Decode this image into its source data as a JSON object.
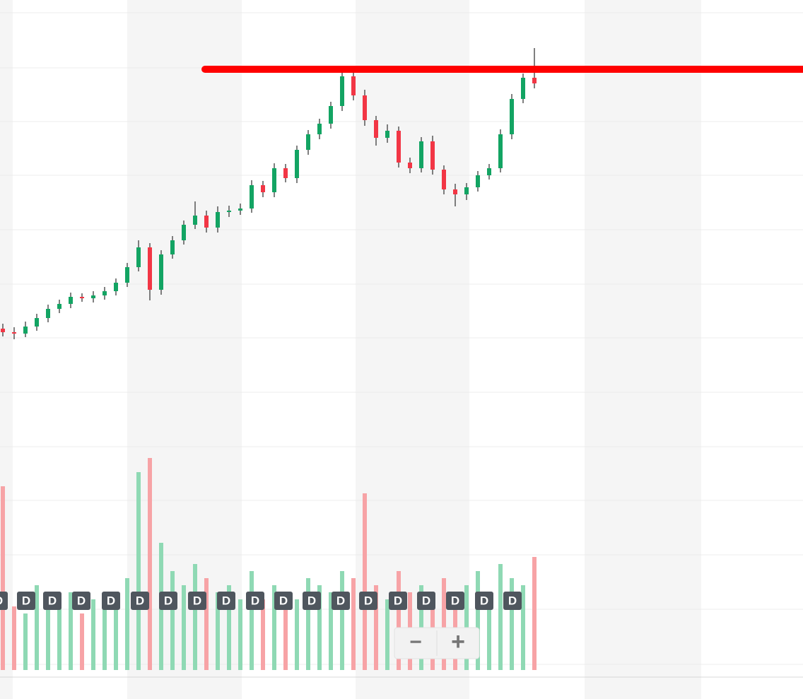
{
  "chart_data": {
    "type": "candlestick",
    "up_color": "#13a463",
    "down_color": "#f23645",
    "volume_up_color": "#8fd9b4",
    "volume_down_color": "#f7a3a6",
    "ylim": [
      0,
      95
    ],
    "volume_lim": [
      0,
      95
    ],
    "open": [
      48.5,
      48.0,
      47.8,
      48.8,
      50.0,
      51.3,
      52.0,
      53.0,
      52.8,
      53.2,
      53.8,
      55.0,
      57.2,
      60.0,
      54.0,
      59.0,
      61.0,
      63.2,
      64.5,
      62.8,
      65.0,
      65.2,
      65.5,
      68.8,
      67.8,
      71.2,
      69.8,
      73.8,
      76.0,
      77.5,
      80.0,
      84.2,
      81.5,
      78.0,
      75.5,
      76.5,
      72.0,
      71.2,
      75.0,
      71.0,
      68.2,
      67.5,
      68.5,
      70.2,
      71.2,
      76.0,
      81.0,
      84.0
    ],
    "high": [
      49.2,
      48.7,
      49.5,
      50.6,
      51.9,
      52.6,
      53.6,
      53.5,
      53.8,
      54.4,
      55.6,
      57.8,
      61.0,
      60.6,
      59.6,
      61.6,
      63.8,
      66.5,
      65.2,
      65.8,
      65.9,
      66.2,
      69.5,
      69.4,
      71.9,
      71.8,
      74.4,
      76.6,
      78.2,
      80.6,
      85.0,
      85.1,
      82.3,
      78.6,
      77.4,
      77.1,
      72.7,
      75.6,
      75.8,
      71.6,
      69.0,
      69.1,
      70.8,
      71.8,
      76.7,
      81.7,
      84.6,
      88.2
    ],
    "low": [
      47.4,
      47.0,
      47.3,
      48.2,
      49.4,
      50.7,
      51.4,
      52.3,
      52.2,
      52.6,
      53.2,
      54.4,
      56.6,
      52.5,
      53.3,
      58.4,
      60.4,
      62.6,
      62.1,
      62.1,
      64.3,
      64.6,
      64.9,
      67.1,
      67.1,
      69.2,
      69.1,
      73.1,
      75.3,
      76.8,
      79.3,
      80.8,
      77.2,
      74.4,
      74.8,
      71.3,
      70.5,
      70.6,
      70.3,
      67.5,
      65.8,
      66.7,
      67.9,
      69.6,
      70.6,
      75.3,
      80.4,
      82.5
    ],
    "close": [
      48.0,
      47.8,
      48.8,
      50.0,
      51.3,
      52.0,
      53.0,
      52.8,
      53.2,
      53.8,
      55.0,
      57.2,
      60.0,
      54.0,
      59.0,
      61.0,
      63.2,
      64.5,
      62.8,
      65.0,
      65.2,
      65.5,
      68.8,
      67.8,
      71.2,
      69.8,
      73.8,
      76.0,
      77.5,
      80.0,
      84.2,
      81.5,
      78.0,
      75.5,
      76.5,
      72.0,
      71.2,
      75.0,
      71.0,
      68.2,
      67.5,
      68.5,
      70.2,
      71.2,
      76.0,
      81.0,
      84.0,
      83.2
    ],
    "volume": [
      26,
      9,
      8,
      12,
      10,
      9,
      11,
      8,
      10,
      9,
      11,
      13,
      28,
      30,
      18,
      14,
      12,
      15,
      13,
      11,
      12,
      10,
      14,
      10,
      12,
      11,
      10,
      13,
      12,
      11,
      14,
      13,
      25,
      12,
      10,
      14,
      11,
      12,
      10,
      13,
      11,
      12,
      14,
      10,
      15,
      13,
      12,
      16
    ],
    "level": {
      "value": 85.2,
      "color": "#ff0000"
    },
    "markers": [
      "D",
      "D",
      "D",
      "D",
      "D",
      "D",
      "D",
      "D",
      "D",
      "D",
      "D",
      "D",
      "D",
      "D",
      "D",
      "D",
      "D",
      "D",
      "D"
    ],
    "zoom_out": "−",
    "zoom_in": "+"
  }
}
